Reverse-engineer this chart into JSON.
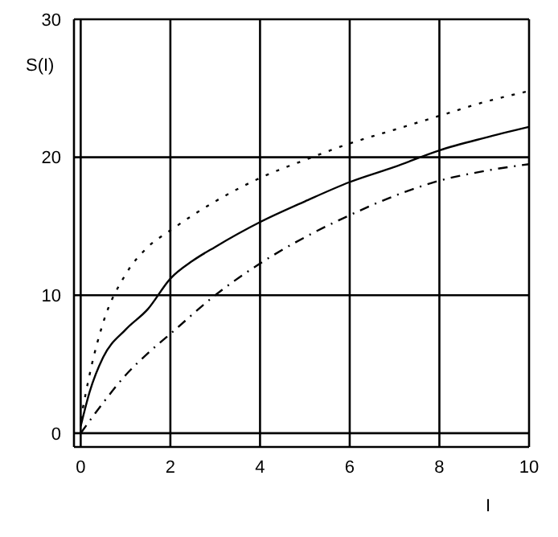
{
  "chart_data": {
    "type": "line",
    "xlabel": "I",
    "ylabel": "S(I)",
    "xlim": [
      -0.15,
      10
    ],
    "ylim": [
      -1,
      30
    ],
    "xticks": [
      0,
      2,
      4,
      6,
      8,
      10
    ],
    "yticks": [
      0,
      10,
      20,
      30
    ],
    "grid": true,
    "marker": "none",
    "series": [
      {
        "color": "#000000",
        "line_style": "solid",
        "x": [
          0,
          0.2,
          0.5,
          1,
          1.5,
          2,
          2.5,
          3,
          4,
          5,
          6,
          7,
          8,
          9,
          10
        ],
        "values": [
          0.5,
          3,
          5.5,
          7.5,
          9,
          11.2,
          12.5,
          13.5,
          15.3,
          16.8,
          18.2,
          19.3,
          20.5,
          21.4,
          22.2
        ]
      },
      {
        "color": "#000000",
        "line_style": "dotted",
        "x": [
          0,
          0.25,
          0.5,
          1,
          1.5,
          2,
          3,
          4,
          5,
          6,
          7,
          8,
          9,
          10
        ],
        "values": [
          1,
          5,
          8,
          11.5,
          13.5,
          14.7,
          16.8,
          18.5,
          19.8,
          21,
          22,
          23,
          24,
          24.8
        ]
      },
      {
        "color": "#000000",
        "line_style": "dashed",
        "x": [
          0,
          0.5,
          1,
          1.5,
          2,
          3,
          4,
          5,
          6,
          7,
          8,
          9,
          10
        ],
        "values": [
          0,
          2.2,
          4.2,
          5.8,
          7.2,
          10,
          12.3,
          14.2,
          15.8,
          17.2,
          18.3,
          19,
          19.5
        ]
      }
    ]
  }
}
